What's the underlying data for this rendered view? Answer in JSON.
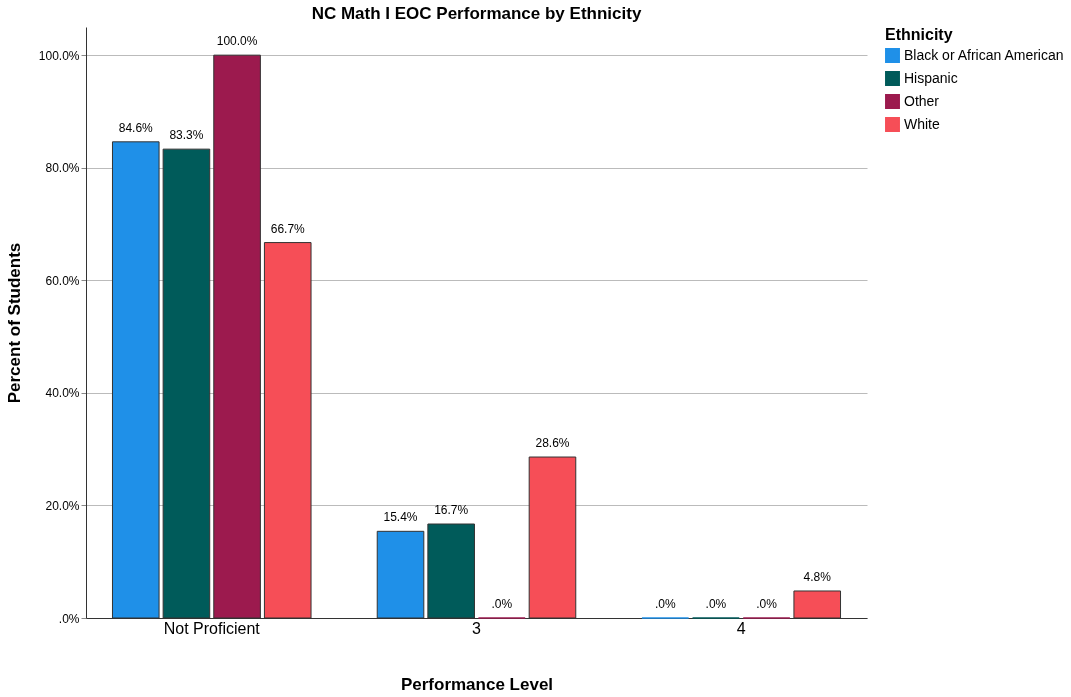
{
  "chart_data": {
    "type": "bar",
    "title": "NC Math I EOC Performance by Ethnicity",
    "xlabel": "Performance Level",
    "ylabel": "Percent of Students",
    "legend_title": "Ethnicity",
    "categories": [
      "Not Proficient",
      "3",
      "4"
    ],
    "series": [
      {
        "name": "Black or African American",
        "color": "#1f90e8",
        "values": [
          84.6,
          15.4,
          0
        ],
        "value_labels": [
          "84.6%",
          "15.4%",
          ".0%"
        ]
      },
      {
        "name": "Hispanic",
        "color": "#005b5a",
        "values": [
          83.3,
          16.7,
          0
        ],
        "value_labels": [
          "83.3%",
          "16.7%",
          ".0%"
        ]
      },
      {
        "name": "Other",
        "color": "#9c1a4e",
        "values": [
          100.0,
          0,
          0
        ],
        "value_labels": [
          "100.0%",
          ".0%",
          ".0%"
        ]
      },
      {
        "name": "White",
        "color": "#f64e57",
        "values": [
          66.7,
          28.6,
          4.8
        ],
        "value_labels": [
          "66.7%",
          "28.6%",
          "4.8%"
        ]
      }
    ],
    "ylim": [
      0,
      105
    ],
    "yticks": [
      {
        "value": 0,
        "label": ".0%"
      },
      {
        "value": 20,
        "label": "20.0%"
      },
      {
        "value": 40,
        "label": "40.0%"
      },
      {
        "value": 60,
        "label": "60.0%"
      },
      {
        "value": 80,
        "label": "80.0%"
      },
      {
        "value": 100,
        "label": "100.0%"
      }
    ],
    "grid": "y",
    "legend": "top right"
  }
}
